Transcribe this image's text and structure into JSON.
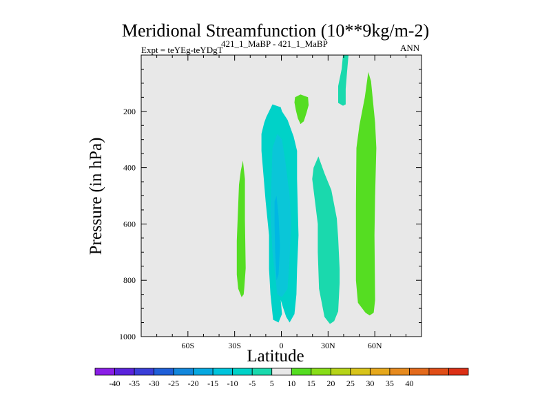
{
  "colors": {
    "background": "#e8e8e8",
    "levels": [
      {
        "value": -10,
        "color": "#00d2c8"
      },
      {
        "value": -5,
        "color": "#1ad9ad"
      },
      {
        "value": 5,
        "color": "#55dd22"
      }
    ],
    "deep": "#0ac6d8",
    "core": "#00b7e3"
  },
  "chart_data": {
    "type": "contour",
    "title": "Meridional Streamfunction (10**9kg/m-2)",
    "subtitle": "421_1_MaBP - 421_1_MaBP",
    "experiment": "Expt = teYEg-teYDgT",
    "season": "ANN",
    "xlabel": "Latitude",
    "ylabel": "Pressure (in hPa)",
    "xlim": [
      -90,
      90
    ],
    "ylim": [
      1000,
      0
    ],
    "xticks": [
      {
        "value": -60,
        "label": "60S"
      },
      {
        "value": -30,
        "label": "30S"
      },
      {
        "value": 0,
        "label": "0"
      },
      {
        "value": 30,
        "label": "30N"
      },
      {
        "value": 60,
        "label": "60N"
      }
    ],
    "yticks": [
      {
        "value": 200,
        "label": "200"
      },
      {
        "value": 400,
        "label": "400"
      },
      {
        "value": 600,
        "label": "600"
      },
      {
        "value": 800,
        "label": "800"
      },
      {
        "value": 1000,
        "label": "1000"
      }
    ],
    "regions": [
      {
        "name": "cell-25S",
        "level": 5,
        "points": [
          [
            -24.7,
            375
          ],
          [
            -23.4,
            440
          ],
          [
            -23.4,
            585
          ],
          [
            -22.9,
            757
          ],
          [
            -23.8,
            827
          ],
          [
            -24.2,
            850
          ],
          [
            -25.5,
            860
          ],
          [
            -27.7,
            830
          ],
          [
            -28.6,
            780
          ],
          [
            -28.6,
            660
          ],
          [
            -27.2,
            460
          ],
          [
            -26.0,
            410
          ]
        ]
      },
      {
        "name": "cell-10N-top",
        "level": 5,
        "points": [
          [
            8.8,
            150
          ],
          [
            12.3,
            140
          ],
          [
            17.1,
            150
          ],
          [
            17.5,
            178
          ],
          [
            16.2,
            205
          ],
          [
            14.4,
            235
          ],
          [
            12.3,
            245
          ],
          [
            10.6,
            225
          ],
          [
            9.3,
            195
          ],
          [
            8.4,
            168
          ]
        ]
      },
      {
        "name": "cell-58N",
        "level": 5,
        "points": [
          [
            55.8,
            60
          ],
          [
            57.6,
            93
          ],
          [
            60.2,
            240
          ],
          [
            61.0,
            330
          ],
          [
            60.2,
            500
          ],
          [
            59.8,
            640
          ],
          [
            60.2,
            870
          ],
          [
            59.3,
            915
          ],
          [
            56.7,
            925
          ],
          [
            54.0,
            915
          ],
          [
            49.2,
            880
          ],
          [
            47.9,
            800
          ],
          [
            47.9,
            530
          ],
          [
            48.2,
            330
          ],
          [
            50.1,
            250
          ],
          [
            53.6,
            150
          ]
        ]
      },
      {
        "name": "cell-40N-top",
        "level": -5,
        "points": [
          [
            39.6,
            0
          ],
          [
            43.1,
            0
          ],
          [
            42.2,
            60
          ],
          [
            41.3,
            120
          ],
          [
            41.3,
            175
          ],
          [
            39.6,
            180
          ],
          [
            36.5,
            170
          ],
          [
            36.5,
            110
          ],
          [
            38.7,
            50
          ]
        ]
      },
      {
        "name": "cell-30N",
        "level": -5,
        "points": [
          [
            23.8,
            360
          ],
          [
            27.7,
            420
          ],
          [
            32.1,
            480
          ],
          [
            35.6,
            580
          ],
          [
            36.5,
            650
          ],
          [
            37.4,
            760
          ],
          [
            37.4,
            810
          ],
          [
            36.5,
            910
          ],
          [
            33.9,
            945
          ],
          [
            31.2,
            955
          ],
          [
            27.7,
            930
          ],
          [
            24.2,
            830
          ],
          [
            23.4,
            700
          ],
          [
            23.4,
            600
          ],
          [
            19.8,
            440
          ],
          [
            20.7,
            400
          ]
        ]
      },
      {
        "name": "cell-equator",
        "level": -10,
        "points": [
          [
            -9.7,
            220
          ],
          [
            -5.7,
            175
          ],
          [
            -0.4,
            185
          ],
          [
            0.4,
            200
          ],
          [
            4.0,
            230
          ],
          [
            7.9,
            290
          ],
          [
            10.1,
            340
          ],
          [
            10.1,
            440
          ],
          [
            10.6,
            560
          ],
          [
            11.0,
            640
          ],
          [
            10.1,
            760
          ],
          [
            9.7,
            850
          ],
          [
            8.4,
            920
          ],
          [
            5.3,
            950
          ],
          [
            3.1,
            930
          ],
          [
            1.3,
            900
          ],
          [
            -0.4,
            870
          ],
          [
            0.4,
            920
          ],
          [
            -1.8,
            950
          ],
          [
            -5.3,
            940
          ],
          [
            -7.0,
            850
          ],
          [
            -7.9,
            760
          ],
          [
            -7.9,
            640
          ],
          [
            -10.1,
            520
          ],
          [
            -12.8,
            340
          ],
          [
            -12.8,
            280
          ],
          [
            -11.0,
            240
          ]
        ]
      },
      {
        "name": "cell-equator-deep",
        "level": "deep",
        "points": [
          [
            -5.7,
            330
          ],
          [
            -2.6,
            280
          ],
          [
            0.4,
            300
          ],
          [
            2.6,
            380
          ],
          [
            5.3,
            500
          ],
          [
            6.2,
            600
          ],
          [
            5.3,
            720
          ],
          [
            4.0,
            830
          ],
          [
            0.4,
            860
          ],
          [
            -2.6,
            850
          ],
          [
            -5.7,
            700
          ],
          [
            -7.0,
            560
          ]
        ]
      },
      {
        "name": "cell-equator-core",
        "level": "core",
        "points": [
          [
            -4.4,
            520
          ],
          [
            -3.1,
            500
          ],
          [
            -1.8,
            570
          ],
          [
            -0.9,
            680
          ],
          [
            -1.8,
            780
          ],
          [
            -3.1,
            800
          ],
          [
            -4.0,
            700
          ],
          [
            -4.4,
            600
          ]
        ]
      }
    ],
    "colorbar": {
      "labels": [
        "-40",
        "-35",
        "-30",
        "-25",
        "-20",
        "-15",
        "-10",
        "-5",
        "5",
        "10",
        "15",
        "20",
        "25",
        "30",
        "35",
        "40"
      ],
      "colors": [
        "#8a1ee6",
        "#5a23dc",
        "#3a3ed8",
        "#1f5fd8",
        "#1287dc",
        "#06a8e0",
        "#00c4dc",
        "#00d2c8",
        "#1ad9ad",
        "#e8e8e8",
        "#55dd22",
        "#88dd18",
        "#b6d418",
        "#d8c41a",
        "#e6a81c",
        "#e68a1e",
        "#e36a1c",
        "#e04e18",
        "#dc3016"
      ]
    }
  }
}
